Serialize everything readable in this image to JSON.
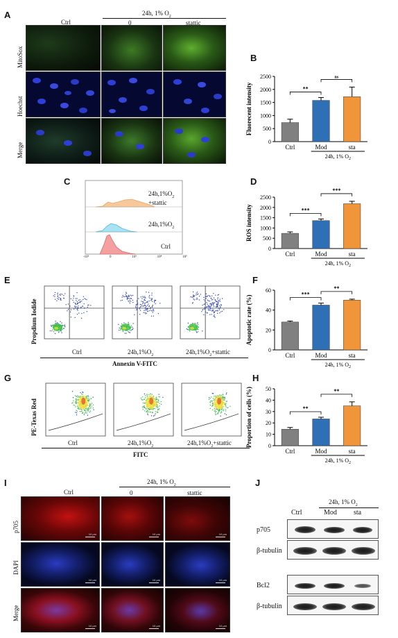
{
  "panels": {
    "A": {
      "label": "A",
      "columns": [
        "Ctrl",
        "0",
        "stattic"
      ],
      "group_label": "24h, 1% O",
      "group_sub": "2",
      "rows": [
        "MitoSox",
        "Hoechst",
        "Merge"
      ]
    },
    "B": {
      "label": "B"
    },
    "C": {
      "label": "C",
      "legends": [
        {
          "main": "24h,1%O",
          "sub": "2",
          "extra": "+stattic"
        },
        {
          "main": "24h,1%O",
          "sub": "2",
          "extra": ""
        },
        {
          "main": "Ctrl",
          "sub": "",
          "extra": ""
        }
      ],
      "xticks": [
        "-10³",
        "0",
        "10³",
        "10⁴",
        "10⁵"
      ]
    },
    "D": {
      "label": "D"
    },
    "E": {
      "label": "E",
      "ylabel": "Propdium Iodide",
      "xlabel": "Annexin V-FITC",
      "plots": [
        {
          "name": "Ctrl",
          "sub": "",
          "tail": ""
        },
        {
          "name": "24h,1%O",
          "sub": "2",
          "tail": ""
        },
        {
          "name": "24h,1%O",
          "sub": "2",
          "tail": "+stattic"
        }
      ]
    },
    "F": {
      "label": "F"
    },
    "G": {
      "label": "G",
      "ylabel": "PE-Texas Red",
      "xlabel": "FITC",
      "plots": [
        {
          "name": "Ctrl",
          "sub": "",
          "tail": ""
        },
        {
          "name": "24h,1%O",
          "sub": "2",
          "tail": ""
        },
        {
          "name": "24h,1%O",
          "sub": "2",
          "tail": "+stattic"
        }
      ]
    },
    "H": {
      "label": "H"
    },
    "I": {
      "label": "I",
      "columns": [
        "Ctrl",
        "0",
        "stattic"
      ],
      "group_label": "24h, 1% O",
      "group_sub": "2",
      "rows": [
        "p705",
        "DAPI",
        "Merge"
      ],
      "scale": "10 μm"
    },
    "J": {
      "label": "J",
      "group_label": "24h, 1% O",
      "group_sub": "2",
      "columns": [
        "Ctrl",
        "Mod",
        "sta"
      ],
      "rows": [
        "p705",
        "β-tubulin",
        "Bcl2",
        "β-tubulin"
      ]
    }
  },
  "chart_data": [
    {
      "panel": "B",
      "type": "bar",
      "categories": [
        "Ctrl",
        "Mod",
        "sta"
      ],
      "values": [
        730,
        1580,
        1720
      ],
      "errors": [
        130,
        110,
        370
      ],
      "colors": [
        "#808080",
        "#2f6fb5",
        "#f0953a"
      ],
      "ylabel": "Fluorecent intensity",
      "ylim": [
        0,
        2500
      ],
      "yticks": [
        0,
        500,
        1000,
        1500,
        2000,
        2500
      ],
      "significance": [
        {
          "from": 0,
          "to": 1,
          "label": "**"
        },
        {
          "from": 1,
          "to": 2,
          "label": "ns"
        }
      ],
      "group": {
        "text": "24h, 1% O",
        "sub": "2",
        "from": 1,
        "to": 2
      }
    },
    {
      "panel": "D",
      "type": "bar",
      "categories": [
        "Ctrl",
        "Mod",
        "sta"
      ],
      "values": [
        740,
        1360,
        2180
      ],
      "errors": [
        70,
        80,
        120
      ],
      "colors": [
        "#808080",
        "#2f6fb5",
        "#f0953a"
      ],
      "ylabel": "ROS intensity",
      "ylim": [
        0,
        2500
      ],
      "yticks": [
        0,
        500,
        1000,
        1500,
        2000,
        2500
      ],
      "significance": [
        {
          "from": 0,
          "to": 1,
          "label": "***"
        },
        {
          "from": 1,
          "to": 2,
          "label": "***"
        }
      ],
      "group": {
        "text": "24h, 1% O",
        "sub": "2",
        "from": 1,
        "to": 2
      }
    },
    {
      "panel": "F",
      "type": "bar",
      "categories": [
        "Ctrl",
        "Mod",
        "sta"
      ],
      "values": [
        28,
        45,
        50
      ],
      "errors": [
        1,
        2,
        1
      ],
      "colors": [
        "#808080",
        "#2f6fb5",
        "#f0953a"
      ],
      "ylabel": "Apoptotic rate (%)",
      "ylim": [
        0,
        60
      ],
      "yticks": [
        0,
        20,
        40,
        60
      ],
      "significance": [
        {
          "from": 0,
          "to": 1,
          "label": "***"
        },
        {
          "from": 1,
          "to": 2,
          "label": "**"
        }
      ],
      "group": {
        "text": "24h, 1% O",
        "sub": "2",
        "from": 1,
        "to": 2
      }
    },
    {
      "panel": "H",
      "type": "bar",
      "categories": [
        "Ctrl",
        "Mod",
        "sta"
      ],
      "values": [
        14.5,
        23.5,
        35
      ],
      "errors": [
        1.5,
        1.5,
        3.5
      ],
      "colors": [
        "#808080",
        "#2f6fb5",
        "#f0953a"
      ],
      "ylabel": "Proportion of cells (%)",
      "ylim": [
        0,
        50
      ],
      "yticks": [
        0,
        10,
        20,
        30,
        40,
        50
      ],
      "significance": [
        {
          "from": 0,
          "to": 1,
          "label": "**"
        },
        {
          "from": 1,
          "to": 2,
          "label": "**"
        }
      ],
      "group": {
        "text": "24h, 1% O",
        "sub": "2",
        "from": 1,
        "to": 2
      }
    }
  ]
}
